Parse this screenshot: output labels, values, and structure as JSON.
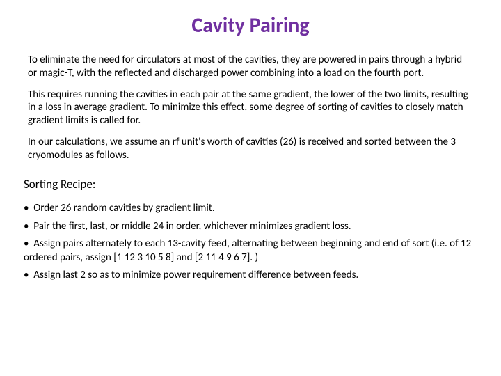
{
  "title": {
    "text": "Cavity Pairing",
    "color": "#7030a0",
    "fontsize": 30
  },
  "paragraphs": [
    "To eliminate the need for circulators at most of the cavities, they are powered in pairs through a hybrid or magic-T, with the reflected and discharged power combining into a load on the fourth port.",
    "This requires running the cavities in each pair at the same gradient, the lower of the two limits, resulting in a loss in average gradient.  To minimize this effect, some degree of sorting of cavities to closely match gradient limits is called for.",
    "In our calculations, we assume an rf unit's worth of cavities (26) is received and sorted between the 3 cryomodules as follows."
  ],
  "subheading": "Sorting Recipe:",
  "bullets": [
    "Order 26 random cavities by gradient limit.",
    "Pair the first, last, or middle 24 in order, whichever minimizes gradient loss.",
    "Assign pairs alternately to each 13-cavity feed, alternating between beginning and end of sort (i.e. of 12 ordered pairs, assign [1 12 3 10 5 8] and [2 11 4 9 6 7]. )",
    "Assign last 2 so as to minimize power requirement difference between feeds."
  ],
  "bullet_char": "•",
  "body_fontsize": 15,
  "subheading_fontsize": 17,
  "background_color": "#ffffff",
  "text_color": "#000000"
}
